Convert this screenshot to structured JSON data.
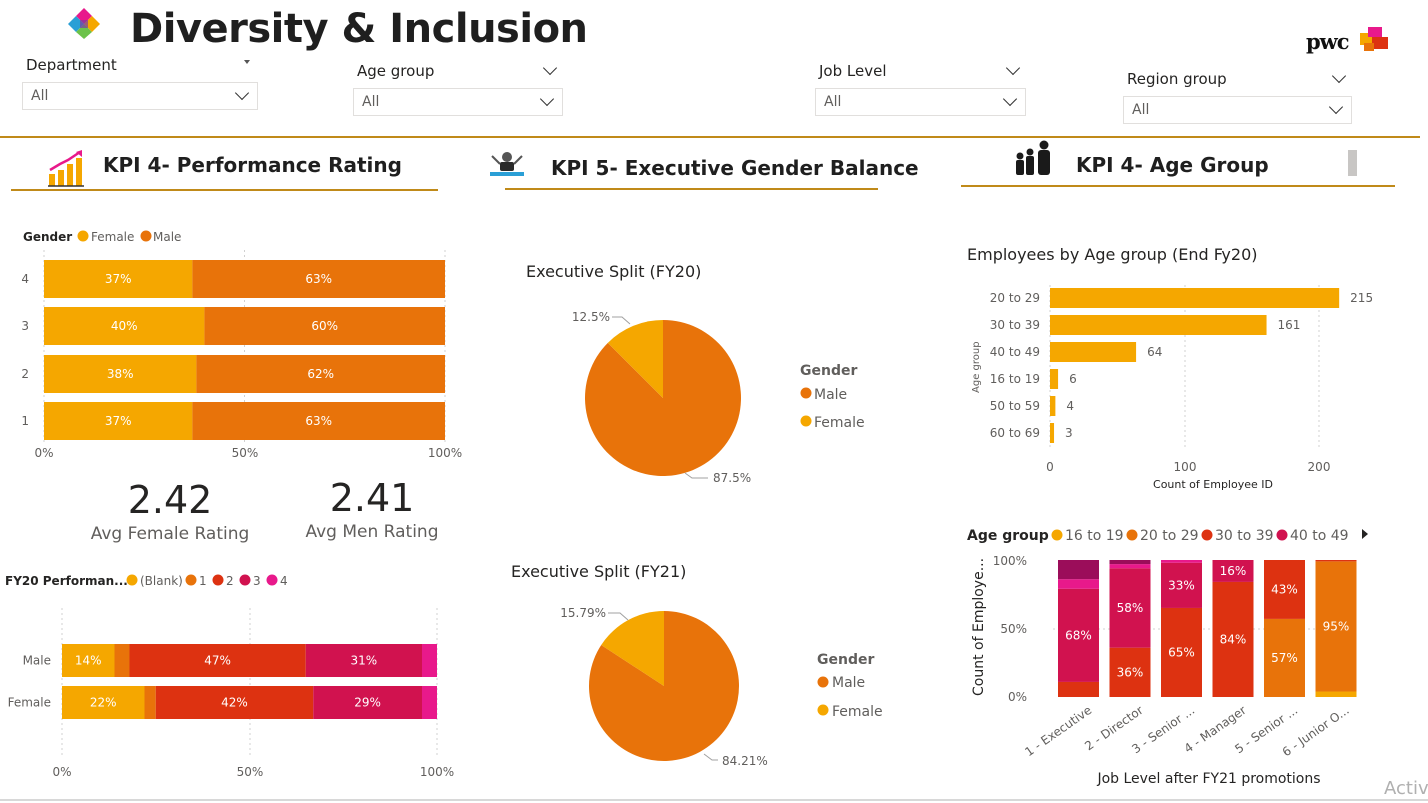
{
  "header": {
    "title": "Diversity & Inclusion",
    "brand": "pwc"
  },
  "slicers": [
    {
      "label": "Department",
      "value": "All"
    },
    {
      "label": "Age group",
      "value": "All"
    },
    {
      "label": "Job Level",
      "value": "All"
    },
    {
      "label": "Region group",
      "value": "All"
    }
  ],
  "sections": {
    "kpi4_perf": "KPI 4- Performance Rating",
    "kpi5_exec": "KPI 5- Executive Gender Balance",
    "kpi4_age": "KPI 4- Age Group"
  },
  "colors": {
    "female": "#F5A700",
    "male": "#E8730A",
    "red": "#DD3211",
    "crimson": "#D1124F",
    "pink": "#E8198B",
    "accent_line": "#C08A19"
  },
  "cards": {
    "avg_female_value": "2.42",
    "avg_female_label": "Avg Female Rating",
    "avg_men_value": "2.41",
    "avg_men_label": "Avg Men Rating"
  },
  "perf_by_rating": {
    "legend_title": "Gender",
    "legend": [
      "Female",
      "Male"
    ],
    "x_ticks": [
      "0%",
      "50%",
      "100%"
    ],
    "rows": [
      {
        "rating": "4",
        "female": 37,
        "male": 63
      },
      {
        "rating": "3",
        "female": 40,
        "male": 60
      },
      {
        "rating": "2",
        "female": 38,
        "male": 62
      },
      {
        "rating": "1",
        "female": 37,
        "male": 63
      }
    ]
  },
  "fy20_perf": {
    "legend_title": "FY20 Performan...",
    "legend": [
      "(Blank)",
      "1",
      "2",
      "3",
      "4"
    ],
    "x_ticks": [
      "0%",
      "50%",
      "100%"
    ],
    "rows": [
      {
        "name": "Male",
        "segments": [
          14,
          4,
          47,
          31,
          4
        ],
        "labels": [
          "14%",
          "",
          "47%",
          "31%",
          ""
        ]
      },
      {
        "name": "Female",
        "segments": [
          22,
          3,
          42,
          29,
          4
        ],
        "labels": [
          "22%",
          "",
          "42%",
          "29%",
          ""
        ]
      }
    ]
  },
  "exec_fy20": {
    "title": "Executive Split (FY20)",
    "legend_title": "Gender",
    "legend": [
      "Male",
      "Female"
    ],
    "male_pct": 87.5,
    "female_pct": 12.5,
    "male_label": "87.5%",
    "female_label": "12.5%"
  },
  "exec_fy21": {
    "title": "Executive Split (FY21)",
    "legend_title": "Gender",
    "legend": [
      "Male",
      "Female"
    ],
    "male_pct": 84.21,
    "female_pct": 15.79,
    "male_label": "84.21%",
    "female_label": "15.79%"
  },
  "age_bars": {
    "title": "Employees by Age group (End Fy20)",
    "ylabel": "Age group",
    "xlabel": "Count of Employee ID",
    "x_ticks": [
      "0",
      "100",
      "200"
    ],
    "rows": [
      {
        "group": "20 to 29",
        "value": 215
      },
      {
        "group": "30 to 39",
        "value": 161
      },
      {
        "group": "40 to 49",
        "value": 64
      },
      {
        "group": "16 to 19",
        "value": 6
      },
      {
        "group": "50 to 59",
        "value": 4
      },
      {
        "group": "60 to 69",
        "value": 3
      }
    ]
  },
  "job_level": {
    "legend_title": "Age group",
    "legend": [
      "16 to 19",
      "20 to 29",
      "30 to 39",
      "40 to 49"
    ],
    "ylabel": "Count of Employe...",
    "xlabel": "Job Level after FY21 promotions",
    "y_ticks": [
      "100%",
      "50%",
      "0%"
    ],
    "columns": [
      {
        "name": "1 - Executive",
        "segments": [
          0,
          0,
          11,
          68,
          7,
          14
        ],
        "labels": [
          "",
          "",
          "",
          "68%",
          "",
          ""
        ]
      },
      {
        "name": "2 - Director",
        "segments": [
          0,
          0,
          36,
          58,
          3,
          3
        ],
        "labels": [
          "",
          "",
          "36%",
          "58%",
          "",
          ""
        ]
      },
      {
        "name": "3 - Senior ...",
        "segments": [
          0,
          0,
          65,
          33,
          2,
          0
        ],
        "labels": [
          "",
          "",
          "65%",
          "33%",
          "",
          ""
        ]
      },
      {
        "name": "4 - Manager",
        "segments": [
          0,
          0,
          84,
          16,
          0,
          0
        ],
        "labels": [
          "",
          "",
          "84%",
          "16%",
          "",
          ""
        ]
      },
      {
        "name": "5 - Senior ...",
        "segments": [
          0,
          57,
          43,
          0,
          0,
          0
        ],
        "labels": [
          "",
          "57%",
          "43%",
          "",
          "",
          ""
        ]
      },
      {
        "name": "6 - Junior O...",
        "segments": [
          4,
          95,
          1,
          0,
          0,
          0
        ],
        "labels": [
          "",
          "95%",
          "",
          "",
          "",
          ""
        ]
      }
    ]
  },
  "watermark": "Activ"
}
